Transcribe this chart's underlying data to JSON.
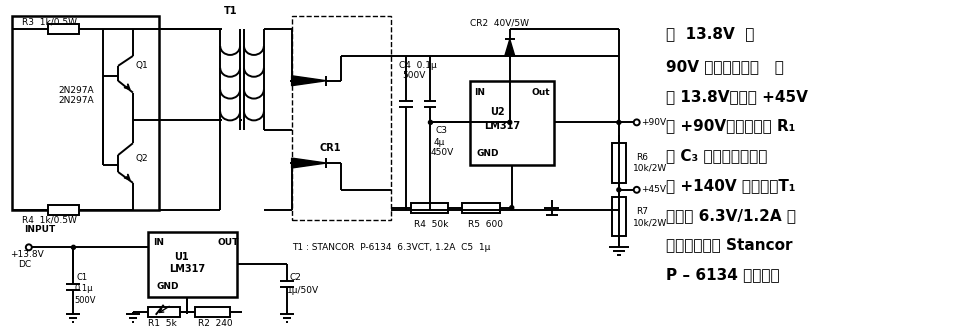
{
  "bg_color": "#ffffff",
  "text_color": "#000000",
  "figsize": [
    9.67,
    3.34
  ],
  "dpi": 100,
  "right_text_lines": [
    "从  13.8V  至",
    "90V 的电源转换器   输",
    "入 13.8V，输出 +45V",
    "和 +90V。调节电阵 R₁",
    "在 C₃ 上可以产生最大",
    "为 +140V 的电压。T₁",
    "是一个 6.3V/1.2A 中",
    "心抜头初级的 Stancor",
    "P – 6134 变压器。"
  ]
}
